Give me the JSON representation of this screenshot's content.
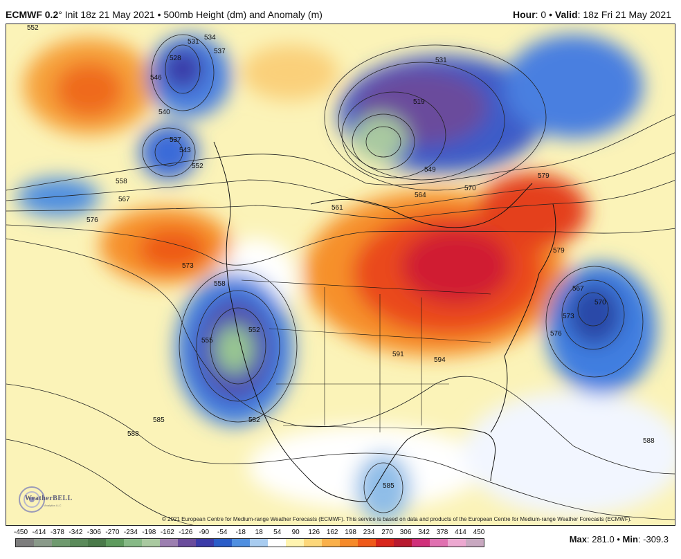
{
  "header": {
    "model": "ECMWF 0.2",
    "degree": "°",
    "init": " Init 18z 21 May 2021 • 500mb Height (dm) and Anomaly (m)",
    "hour_label": "Hour",
    "hour_value": ": 0 • ",
    "valid_label": "Valid",
    "valid_value": ": 18z Fri 21 May 2021"
  },
  "contour_labels": [
    "552",
    "558",
    "567",
    "576",
    "573",
    "558",
    "555",
    "552",
    "582",
    "585",
    "588",
    "528",
    "531",
    "534",
    "537",
    "546",
    "540",
    "537",
    "543",
    "552",
    "561",
    "564",
    "570",
    "579",
    "531",
    "519",
    "549",
    "591",
    "594",
    "579",
    "567",
    "570",
    "573",
    "576",
    "585",
    "588"
  ],
  "copyright": "© 2021 European Centre for Medium-range Weather Forecasts (ECMWF). This service is based on data and products of the European Centre for Medium-range Weather Forecasts (ECMWF).",
  "logo": {
    "name": "WeatherBELL",
    "sub": "Analytics LLC"
  },
  "colorbar": {
    "ticks": [
      "-450",
      "-414",
      "-378",
      "-342",
      "-306",
      "-270",
      "-234",
      "-198",
      "-162",
      "-126",
      "-90",
      "-54",
      "-18",
      "18",
      "54",
      "90",
      "126",
      "162",
      "198",
      "234",
      "270",
      "306",
      "342",
      "378",
      "414",
      "450"
    ],
    "colors": [
      "#7d7d7d",
      "#8a9a8a",
      "#6f9a6f",
      "#5a8a5a",
      "#4a7a4a",
      "#5e9b5e",
      "#86b986",
      "#a9c9a0",
      "#9c7fb0",
      "#6a4c9c",
      "#3b3ba8",
      "#2a5dc8",
      "#4f8fe0",
      "#a8ccf0",
      "#ffffff",
      "#fff4b0",
      "#fcd77a",
      "#f9b04a",
      "#f58a2a",
      "#ef5a1a",
      "#d8261c",
      "#b81a30",
      "#d0307a",
      "#e070b0",
      "#eca8d0",
      "#c8a8c0"
    ]
  },
  "stats": {
    "max_label": "Max",
    "max_value": ": 281.0 • ",
    "min_label": "Min",
    "min_value": ": -309.3"
  }
}
